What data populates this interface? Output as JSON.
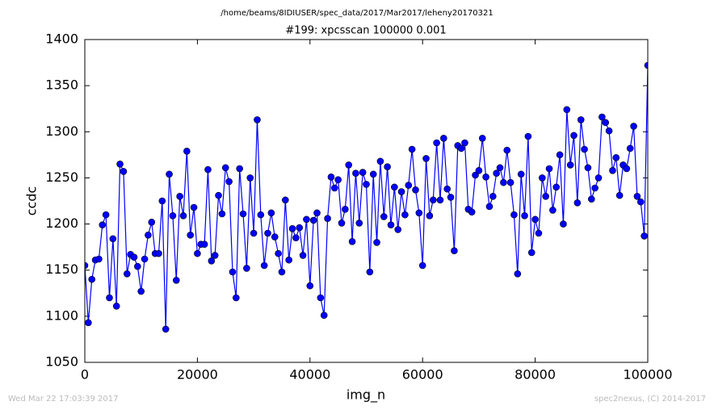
{
  "chart_data": {
    "type": "line",
    "suptitle": "/home/beams/8IDIUSER/spec_data/2017/Mar2017/leheny20170321",
    "title": "#199: xpcsscan 100000 0.001",
    "x_label": "img_n",
    "y_label": "ccdc",
    "footer_left": "Wed Mar 22 17:03:39 2017",
    "footer_right": "spec2nexus, (C) 2014-2017",
    "x": [
      0,
      625,
      1250,
      1875,
      2500,
      3125,
      3750,
      4375,
      5000,
      5625,
      6250,
      6875,
      7500,
      8125,
      8750,
      9375,
      10000,
      10625,
      11250,
      11875,
      12500,
      13125,
      13750,
      14375,
      15000,
      15625,
      16250,
      16875,
      17500,
      18125,
      18750,
      19375,
      20000,
      20625,
      21250,
      21875,
      22500,
      23125,
      23750,
      24375,
      25000,
      25625,
      26250,
      26875,
      27500,
      28125,
      28750,
      29375,
      30000,
      30625,
      31250,
      31875,
      32500,
      33125,
      33750,
      34375,
      35000,
      35625,
      36250,
      36875,
      37500,
      38125,
      38750,
      39375,
      40000,
      40625,
      41250,
      41875,
      42500,
      43125,
      43750,
      44375,
      45000,
      45625,
      46250,
      46875,
      47500,
      48125,
      48750,
      49375,
      50000,
      50625,
      51250,
      51875,
      52500,
      53125,
      53750,
      54375,
      55000,
      55625,
      56250,
      56875,
      57500,
      58125,
      58750,
      59375,
      60000,
      60625,
      61250,
      61875,
      62500,
      63125,
      63750,
      64375,
      65000,
      65625,
      66250,
      66875,
      67500,
      68125,
      68750,
      69375,
      70000,
      70625,
      71250,
      71875,
      72500,
      73125,
      73750,
      74375,
      75000,
      75625,
      76250,
      76875,
      77500,
      78125,
      78750,
      79375,
      80000,
      80625,
      81250,
      81875,
      82500,
      83125,
      83750,
      84375,
      85000,
      85625,
      86250,
      86875,
      87500,
      88125,
      88750,
      89375,
      90000,
      90625,
      91250,
      91875,
      92500,
      93125,
      93750,
      94375,
      95000,
      95625,
      96250,
      96875,
      97500,
      98125,
      98750,
      99375,
      100000
    ],
    "series": [
      {
        "name": "ccdc",
        "color": "#0000ff",
        "values": [
          1155,
          1093,
          1140,
          1161,
          1162,
          1199,
          1210,
          1120,
          1184,
          1111,
          1265,
          1257,
          1146,
          1167,
          1164,
          1154,
          1127,
          1162,
          1188,
          1202,
          1168,
          1168,
          1225,
          1086,
          1254,
          1209,
          1139,
          1230,
          1209,
          1279,
          1188,
          1218,
          1168,
          1178,
          1178,
          1259,
          1160,
          1166,
          1231,
          1211,
          1261,
          1246,
          1148,
          1120,
          1260,
          1211,
          1152,
          1250,
          1190,
          1313,
          1210,
          1155,
          1190,
          1212,
          1186,
          1168,
          1148,
          1226,
          1161,
          1195,
          1185,
          1196,
          1166,
          1205,
          1133,
          1204,
          1212,
          1120,
          1101,
          1206,
          1251,
          1239,
          1248,
          1201,
          1216,
          1264,
          1181,
          1255,
          1201,
          1256,
          1243,
          1148,
          1254,
          1180,
          1268,
          1208,
          1262,
          1199,
          1240,
          1194,
          1235,
          1210,
          1242,
          1281,
          1237,
          1212,
          1155,
          1271,
          1209,
          1226,
          1288,
          1226,
          1293,
          1238,
          1229,
          1171,
          1285,
          1282,
          1288,
          1216,
          1213,
          1253,
          1258,
          1293,
          1251,
          1219,
          1230,
          1255,
          1261,
          1245,
          1280,
          1245,
          1210,
          1146,
          1254,
          1209,
          1295,
          1169,
          1205,
          1190,
          1250,
          1230,
          1260,
          1215,
          1240,
          1275,
          1200,
          1324,
          1264,
          1296,
          1223,
          1313,
          1281,
          1261,
          1227,
          1239,
          1250,
          1316,
          1310,
          1301,
          1258,
          1272,
          1231,
          1264,
          1260,
          1282,
          1306,
          1230,
          1224,
          1187,
          1372
        ]
      }
    ],
    "xlim": [
      0,
      100000
    ],
    "xticks": [
      0,
      20000,
      40000,
      60000,
      80000,
      100000
    ],
    "ylim": [
      1050,
      1400
    ],
    "yticks": [
      1050,
      1100,
      1150,
      1200,
      1250,
      1300,
      1350,
      1400
    ],
    "grid": false
  }
}
